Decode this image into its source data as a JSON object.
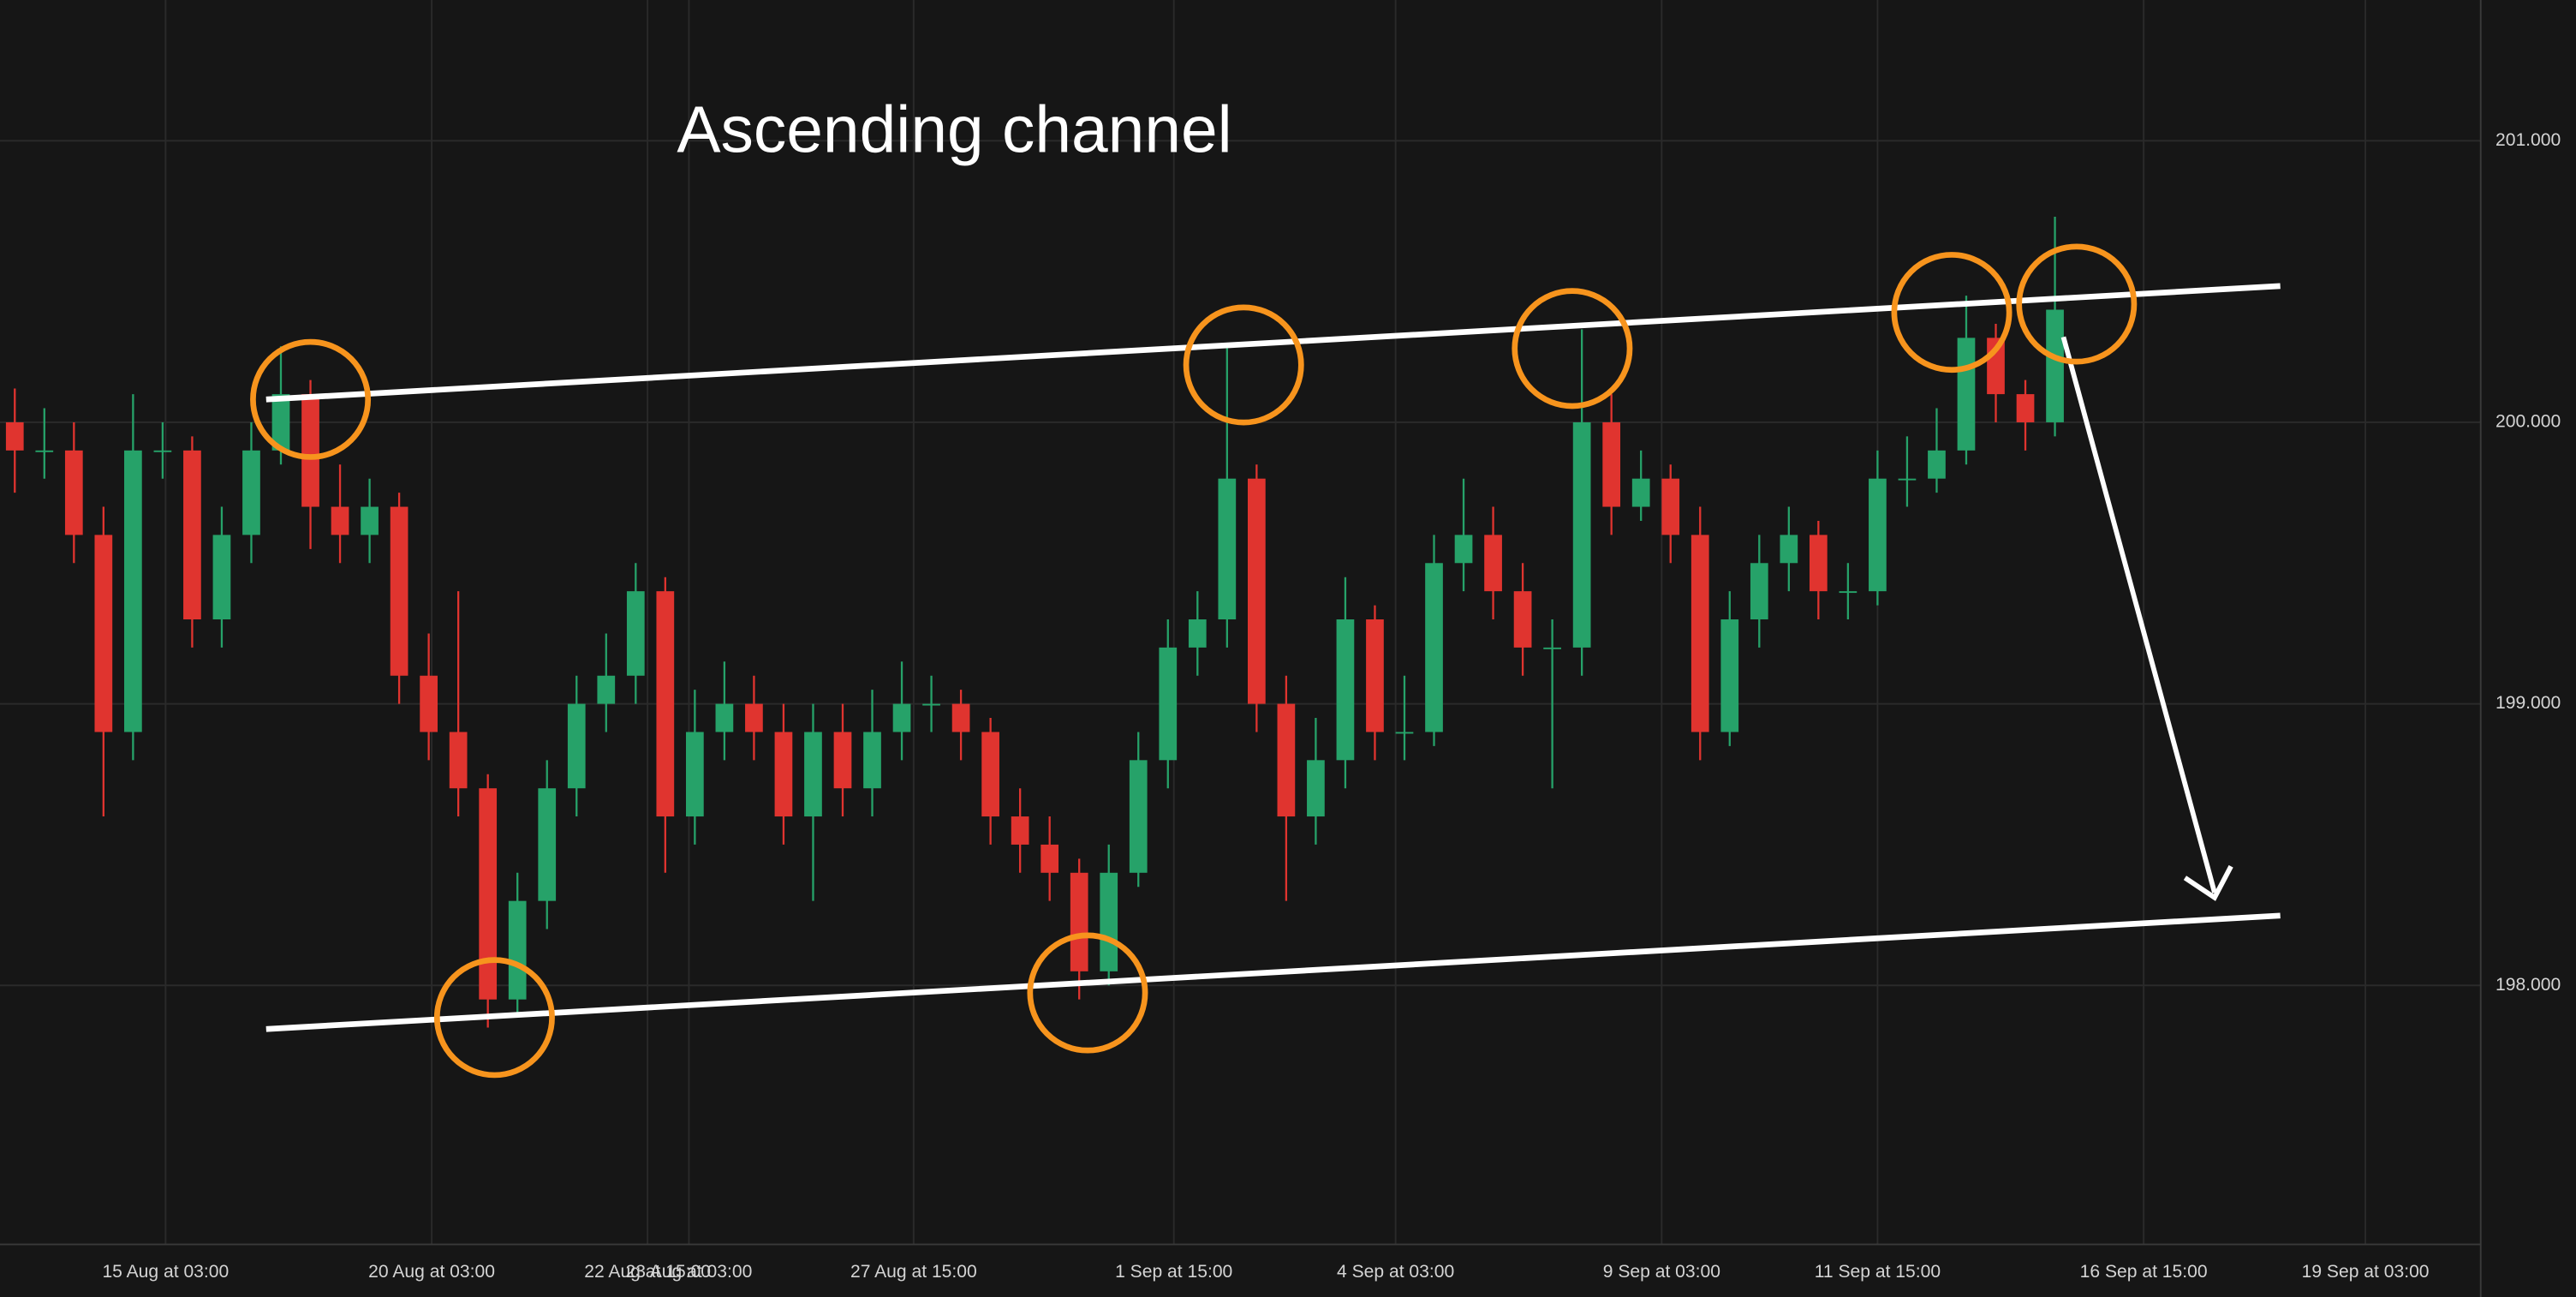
{
  "chart_data": {
    "type": "candlestick",
    "title": "Ascending channel",
    "up_color": "#26a269",
    "down_color": "#e0342f",
    "grid": true,
    "ylim": [
      197.08,
      201.5
    ],
    "yticks": [
      {
        "value": 198,
        "label": "198.000"
      },
      {
        "value": 199,
        "label": "199.000"
      },
      {
        "value": 200,
        "label": "200.000"
      },
      {
        "value": 201,
        "label": "201.000"
      }
    ],
    "xlim": [
      -0.5,
      83.4
    ],
    "xticks": [
      {
        "value": 5.1,
        "label": "15 Aug at 03:00"
      },
      {
        "value": 14.1,
        "label": "20 Aug at 03:00"
      },
      {
        "value": 21.4,
        "label": "22 Aug at 15:00"
      },
      {
        "value": 22.8,
        "label": "23 Aug at 03:00"
      },
      {
        "value": 30.4,
        "label": "27 Aug at 15:00"
      },
      {
        "value": 39.2,
        "label": "1 Sep at 15:00"
      },
      {
        "value": 46.7,
        "label": "4 Sep at 03:00"
      },
      {
        "value": 55.7,
        "label": "9 Sep at 03:00"
      },
      {
        "value": 63.0,
        "label": "11 Sep at 15:00"
      },
      {
        "value": 72.0,
        "label": "16 Sep at 15:00"
      },
      {
        "value": 79.5,
        "label": "19 Sep at 03:00"
      }
    ],
    "open": [
      200.0,
      199.9,
      199.9,
      199.6,
      198.9,
      199.9,
      199.9,
      199.3,
      199.6,
      199.9,
      200.1,
      199.7,
      199.6,
      199.7,
      199.1,
      198.9,
      198.7,
      197.95,
      198.3,
      198.7,
      199.0,
      199.1,
      199.4,
      198.6,
      198.9,
      199.0,
      198.9,
      198.6,
      198.9,
      198.7,
      198.9,
      199.0,
      199.0,
      198.9,
      198.6,
      198.5,
      198.4,
      198.05,
      198.4,
      198.8,
      199.2,
      199.3,
      199.8,
      199.0,
      198.6,
      198.8,
      199.3,
      198.9,
      198.9,
      199.5,
      199.6,
      199.4,
      199.2,
      199.2,
      200.0,
      199.7,
      199.8,
      199.6,
      198.9,
      199.3,
      199.5,
      199.6,
      199.4,
      199.4,
      199.8,
      199.8,
      199.9,
      200.3,
      200.1,
      200.0
    ],
    "high": [
      200.12,
      200.05,
      200.0,
      199.7,
      200.1,
      200.0,
      199.95,
      199.7,
      200.0,
      200.27,
      200.15,
      199.85,
      199.8,
      199.75,
      199.25,
      199.4,
      198.75,
      198.4,
      198.8,
      199.1,
      199.25,
      199.5,
      199.45,
      199.05,
      199.15,
      199.1,
      199.0,
      199.0,
      199.0,
      199.05,
      199.15,
      199.1,
      199.05,
      198.95,
      198.7,
      198.6,
      198.45,
      198.5,
      198.9,
      199.3,
      199.4,
      200.27,
      199.85,
      199.1,
      198.95,
      199.45,
      199.35,
      199.1,
      199.6,
      199.8,
      199.7,
      199.5,
      199.3,
      200.33,
      200.1,
      199.9,
      199.85,
      199.7,
      199.4,
      199.6,
      199.7,
      199.65,
      199.5,
      199.9,
      199.95,
      200.05,
      200.45,
      200.35,
      200.15,
      200.73
    ],
    "low": [
      199.75,
      199.8,
      199.5,
      198.6,
      198.8,
      199.8,
      199.2,
      199.2,
      199.5,
      199.85,
      199.55,
      199.5,
      199.5,
      199.0,
      198.8,
      198.6,
      197.85,
      197.9,
      198.2,
      198.6,
      198.9,
      199.0,
      198.4,
      198.5,
      198.8,
      198.8,
      198.5,
      198.3,
      198.6,
      198.6,
      198.8,
      198.9,
      198.8,
      198.5,
      198.4,
      198.3,
      197.95,
      198.0,
      198.35,
      198.7,
      199.1,
      199.2,
      198.9,
      198.3,
      198.5,
      198.7,
      198.8,
      198.8,
      198.85,
      199.4,
      199.3,
      199.1,
      198.7,
      199.1,
      199.6,
      199.65,
      199.5,
      198.8,
      198.85,
      199.2,
      199.4,
      199.3,
      199.3,
      199.35,
      199.7,
      199.75,
      199.85,
      200.0,
      199.9,
      199.95
    ],
    "close": [
      199.9,
      199.9,
      199.6,
      198.9,
      199.9,
      199.9,
      199.3,
      199.6,
      199.9,
      200.1,
      199.7,
      199.6,
      199.7,
      199.1,
      198.9,
      198.7,
      197.95,
      198.3,
      198.7,
      199.0,
      199.1,
      199.4,
      198.6,
      198.9,
      199.0,
      198.9,
      198.6,
      198.9,
      198.7,
      198.9,
      199.0,
      199.0,
      198.9,
      198.6,
      198.5,
      198.4,
      198.05,
      198.4,
      198.8,
      199.2,
      199.3,
      199.8,
      199.0,
      198.6,
      198.8,
      199.3,
      198.9,
      198.9,
      199.5,
      199.6,
      199.4,
      199.2,
      199.2,
      200.0,
      199.7,
      199.8,
      199.6,
      198.9,
      199.3,
      199.5,
      199.6,
      199.4,
      199.4,
      199.8,
      199.8,
      199.9,
      200.3,
      200.1,
      200.0,
      200.4
    ]
  }
}
